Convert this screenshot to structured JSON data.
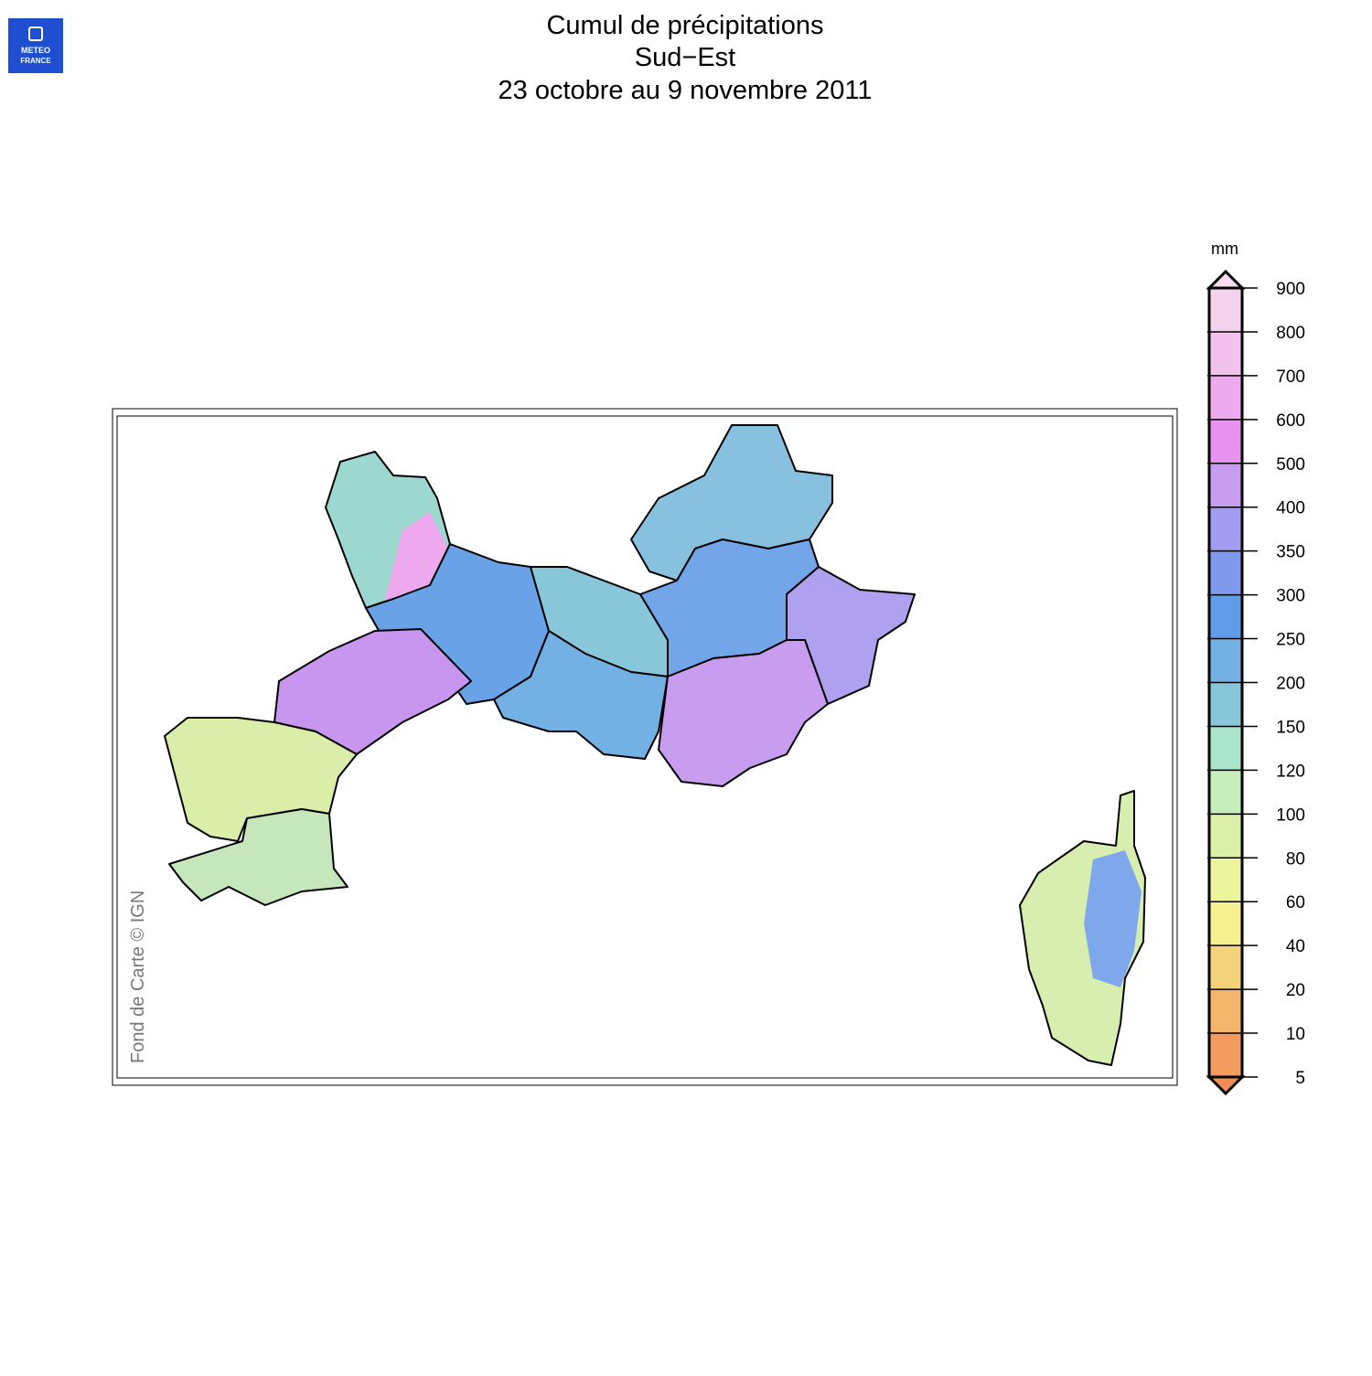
{
  "header": {
    "logo_lines": [
      "METEO",
      "FRANCE"
    ],
    "title": [
      "Cumul de précipitations",
      "Sud−Est",
      "23 octobre au 9 novembre 2011"
    ]
  },
  "legend": {
    "unit": "mm",
    "ticks": [
      900,
      800,
      700,
      600,
      500,
      400,
      350,
      300,
      250,
      200,
      150,
      120,
      100,
      80,
      60,
      40,
      20,
      10,
      5
    ],
    "over_color": "#f7dcef",
    "colors": [
      "#f5d2ec",
      "#f2c2ec",
      "#eeaaee",
      "#e892f0",
      "#c89df0",
      "#a29df0",
      "#8099ec",
      "#5f9be8",
      "#73b0e4",
      "#88c6da",
      "#aae4cc",
      "#c6eebc",
      "#daf0a8",
      "#ecf49c",
      "#f6f090",
      "#f4d27c",
      "#f4b46c",
      "#f29c60"
    ],
    "under_color": "#f08c58"
  },
  "credit": "Fond de Carte © IGN"
}
